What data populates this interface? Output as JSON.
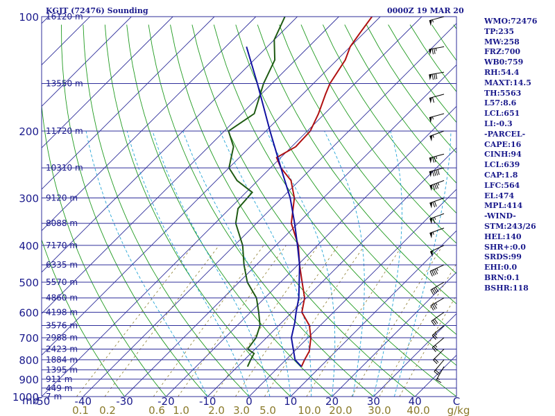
{
  "header": {
    "station_title": "KGJT (72476) Sounding",
    "valid_time": "0000Z 19 MAR 20"
  },
  "stats": [
    "WMO:72476",
    "TP:235",
    "MW:258",
    "FRZ:700",
    "WB0:759",
    "RH:54.4",
    "MAXT:14.5",
    "TH:5563",
    "L57:8.6",
    "LCL:651",
    "LI:-0.3",
    "-PARCEL-",
    "CAPE:16",
    "CINH:94",
    "LCL:639",
    "CAP:1.8",
    "LFC:564",
    "EL:474",
    "MPL:414",
    "-WIND-",
    "STM:243/26",
    "HEL:140",
    "SHR+:0.0",
    "SRDS:99",
    "EHI:0.0",
    "BRN:0.1",
    "BSHR:118"
  ],
  "chart_data": {
    "type": "line",
    "diagram": "skew-t log-p",
    "y_axis": {
      "label": "mb",
      "scale": "log",
      "range": [
        1000,
        100
      ],
      "ticks": [
        100,
        200,
        300,
        400,
        500,
        600,
        700,
        800,
        900,
        1000
      ]
    },
    "x_axis": {
      "label": "C",
      "range": [
        -50,
        50
      ],
      "ticks": [
        "-50",
        "-40",
        "-30",
        "-20",
        "-10",
        "0",
        "10",
        "20",
        "30",
        "40"
      ]
    },
    "mixing_ratio_axis": {
      "label": "g/kg",
      "ticks": [
        "0.1",
        "0.2",
        "0.6",
        "1.0",
        "2.0",
        "3.0",
        "5.0",
        "10.0",
        "20.0",
        "30.0",
        "40.0"
      ]
    },
    "height_labels": [
      {
        "p": 100,
        "label": "16120 m"
      },
      {
        "p": 150,
        "label": "13550 m"
      },
      {
        "p": 200,
        "label": "11720 m"
      },
      {
        "p": 250,
        "label": "10310 m"
      },
      {
        "p": 300,
        "label": "9120 m"
      },
      {
        "p": 350,
        "label": "8088 m"
      },
      {
        "p": 400,
        "label": "7170 m"
      },
      {
        "p": 450,
        "label": "6335 m"
      },
      {
        "p": 500,
        "label": "5570 m"
      },
      {
        "p": 550,
        "label": "4860 m"
      },
      {
        "p": 600,
        "label": "4198 m"
      },
      {
        "p": 650,
        "label": "3576 m"
      },
      {
        "p": 700,
        "label": "2988 m"
      },
      {
        "p": 750,
        "label": "2423 m"
      },
      {
        "p": 800,
        "label": "1884 m"
      },
      {
        "p": 850,
        "label": "1395 m"
      },
      {
        "p": 900,
        "label": "911 m"
      },
      {
        "p": 950,
        "label": "449 m"
      },
      {
        "p": 1000,
        "label": "7 m"
      }
    ],
    "series": [
      {
        "color": "#b01010",
        "points": [
          {
            "p": 834,
            "t": 5.4
          },
          {
            "p": 800,
            "t": 4.5
          },
          {
            "p": 760,
            "t": 3.6
          },
          {
            "p": 700,
            "t": 0.7
          },
          {
            "p": 650,
            "t": -2.6
          },
          {
            "p": 600,
            "t": -7.6
          },
          {
            "p": 550,
            "t": -10.4
          },
          {
            "p": 500,
            "t": -14.8
          },
          {
            "p": 450,
            "t": -19.6
          },
          {
            "p": 400,
            "t": -24.6
          },
          {
            "p": 350,
            "t": -31.6
          },
          {
            "p": 300,
            "t": -37.0
          },
          {
            "p": 270,
            "t": -42.0
          },
          {
            "p": 250,
            "t": -47.5
          },
          {
            "p": 235,
            "t": -51.0
          },
          {
            "p": 220,
            "t": -49.0
          },
          {
            "p": 200,
            "t": -49.3
          },
          {
            "p": 180,
            "t": -51.5
          },
          {
            "p": 160,
            "t": -54.5
          },
          {
            "p": 150,
            "t": -56.0
          },
          {
            "p": 130,
            "t": -58.0
          },
          {
            "p": 120,
            "t": -60.0
          },
          {
            "p": 110,
            "t": -61.0
          },
          {
            "p": 100,
            "t": -62.0
          }
        ]
      },
      {
        "color": "#1e5a12",
        "points": [
          {
            "p": 834,
            "t": -7.6
          },
          {
            "p": 800,
            "t": -8.5
          },
          {
            "p": 770,
            "t": -9.2
          },
          {
            "p": 750,
            "t": -11.8
          },
          {
            "p": 700,
            "t": -12.5
          },
          {
            "p": 650,
            "t": -14.5
          },
          {
            "p": 600,
            "t": -18.0
          },
          {
            "p": 550,
            "t": -22.0
          },
          {
            "p": 500,
            "t": -28.0
          },
          {
            "p": 450,
            "t": -33.0
          },
          {
            "p": 400,
            "t": -38.0
          },
          {
            "p": 350,
            "t": -45.0
          },
          {
            "p": 320,
            "t": -48.0
          },
          {
            "p": 290,
            "t": -48.5
          },
          {
            "p": 270,
            "t": -55.0
          },
          {
            "p": 250,
            "t": -60.0
          },
          {
            "p": 220,
            "t": -64.0
          },
          {
            "p": 200,
            "t": -69.0
          },
          {
            "p": 180,
            "t": -67.0
          },
          {
            "p": 150,
            "t": -72.0
          },
          {
            "p": 130,
            "t": -75.0
          },
          {
            "p": 115,
            "t": -80.0
          },
          {
            "p": 100,
            "t": -83.0
          }
        ]
      },
      {
        "color": "#1010a0",
        "points": [
          {
            "p": 834,
            "t": 5.4
          },
          {
            "p": 800,
            "t": 2.2
          },
          {
            "p": 700,
            "t": -4.0
          },
          {
            "p": 639,
            "t": -6.8
          },
          {
            "p": 600,
            "t": -9.0
          },
          {
            "p": 550,
            "t": -11.8
          },
          {
            "p": 500,
            "t": -15.5
          },
          {
            "p": 450,
            "t": -19.6
          },
          {
            "p": 400,
            "t": -24.8
          },
          {
            "p": 350,
            "t": -30.8
          },
          {
            "p": 300,
            "t": -38.0
          },
          {
            "p": 250,
            "t": -47.5
          },
          {
            "p": 200,
            "t": -59.0
          },
          {
            "p": 150,
            "t": -73.5
          },
          {
            "p": 120,
            "t": -85.0
          }
        ]
      }
    ],
    "wind_barbs": [
      {
        "p": 100,
        "dir": 255,
        "spd": 55
      },
      {
        "p": 120,
        "dir": 260,
        "spd": 75
      },
      {
        "p": 140,
        "dir": 260,
        "spd": 80
      },
      {
        "p": 160,
        "dir": 255,
        "spd": 60
      },
      {
        "p": 180,
        "dir": 255,
        "spd": 55
      },
      {
        "p": 200,
        "dir": 250,
        "spd": 55
      },
      {
        "p": 230,
        "dir": 255,
        "spd": 75
      },
      {
        "p": 250,
        "dir": 255,
        "spd": 90
      },
      {
        "p": 270,
        "dir": 250,
        "spd": 85
      },
      {
        "p": 300,
        "dir": 250,
        "spd": 70
      },
      {
        "p": 330,
        "dir": 250,
        "spd": 65
      },
      {
        "p": 360,
        "dir": 250,
        "spd": 55
      },
      {
        "p": 400,
        "dir": 245,
        "spd": 50
      },
      {
        "p": 450,
        "dir": 245,
        "spd": 45
      },
      {
        "p": 500,
        "dir": 240,
        "spd": 40
      },
      {
        "p": 550,
        "dir": 240,
        "spd": 35
      },
      {
        "p": 600,
        "dir": 235,
        "spd": 30
      },
      {
        "p": 650,
        "dir": 230,
        "spd": 25
      },
      {
        "p": 700,
        "dir": 230,
        "spd": 25
      },
      {
        "p": 750,
        "dir": 225,
        "spd": 20
      },
      {
        "p": 800,
        "dir": 220,
        "spd": 20
      },
      {
        "p": 834,
        "dir": 210,
        "spd": 15
      }
    ]
  }
}
